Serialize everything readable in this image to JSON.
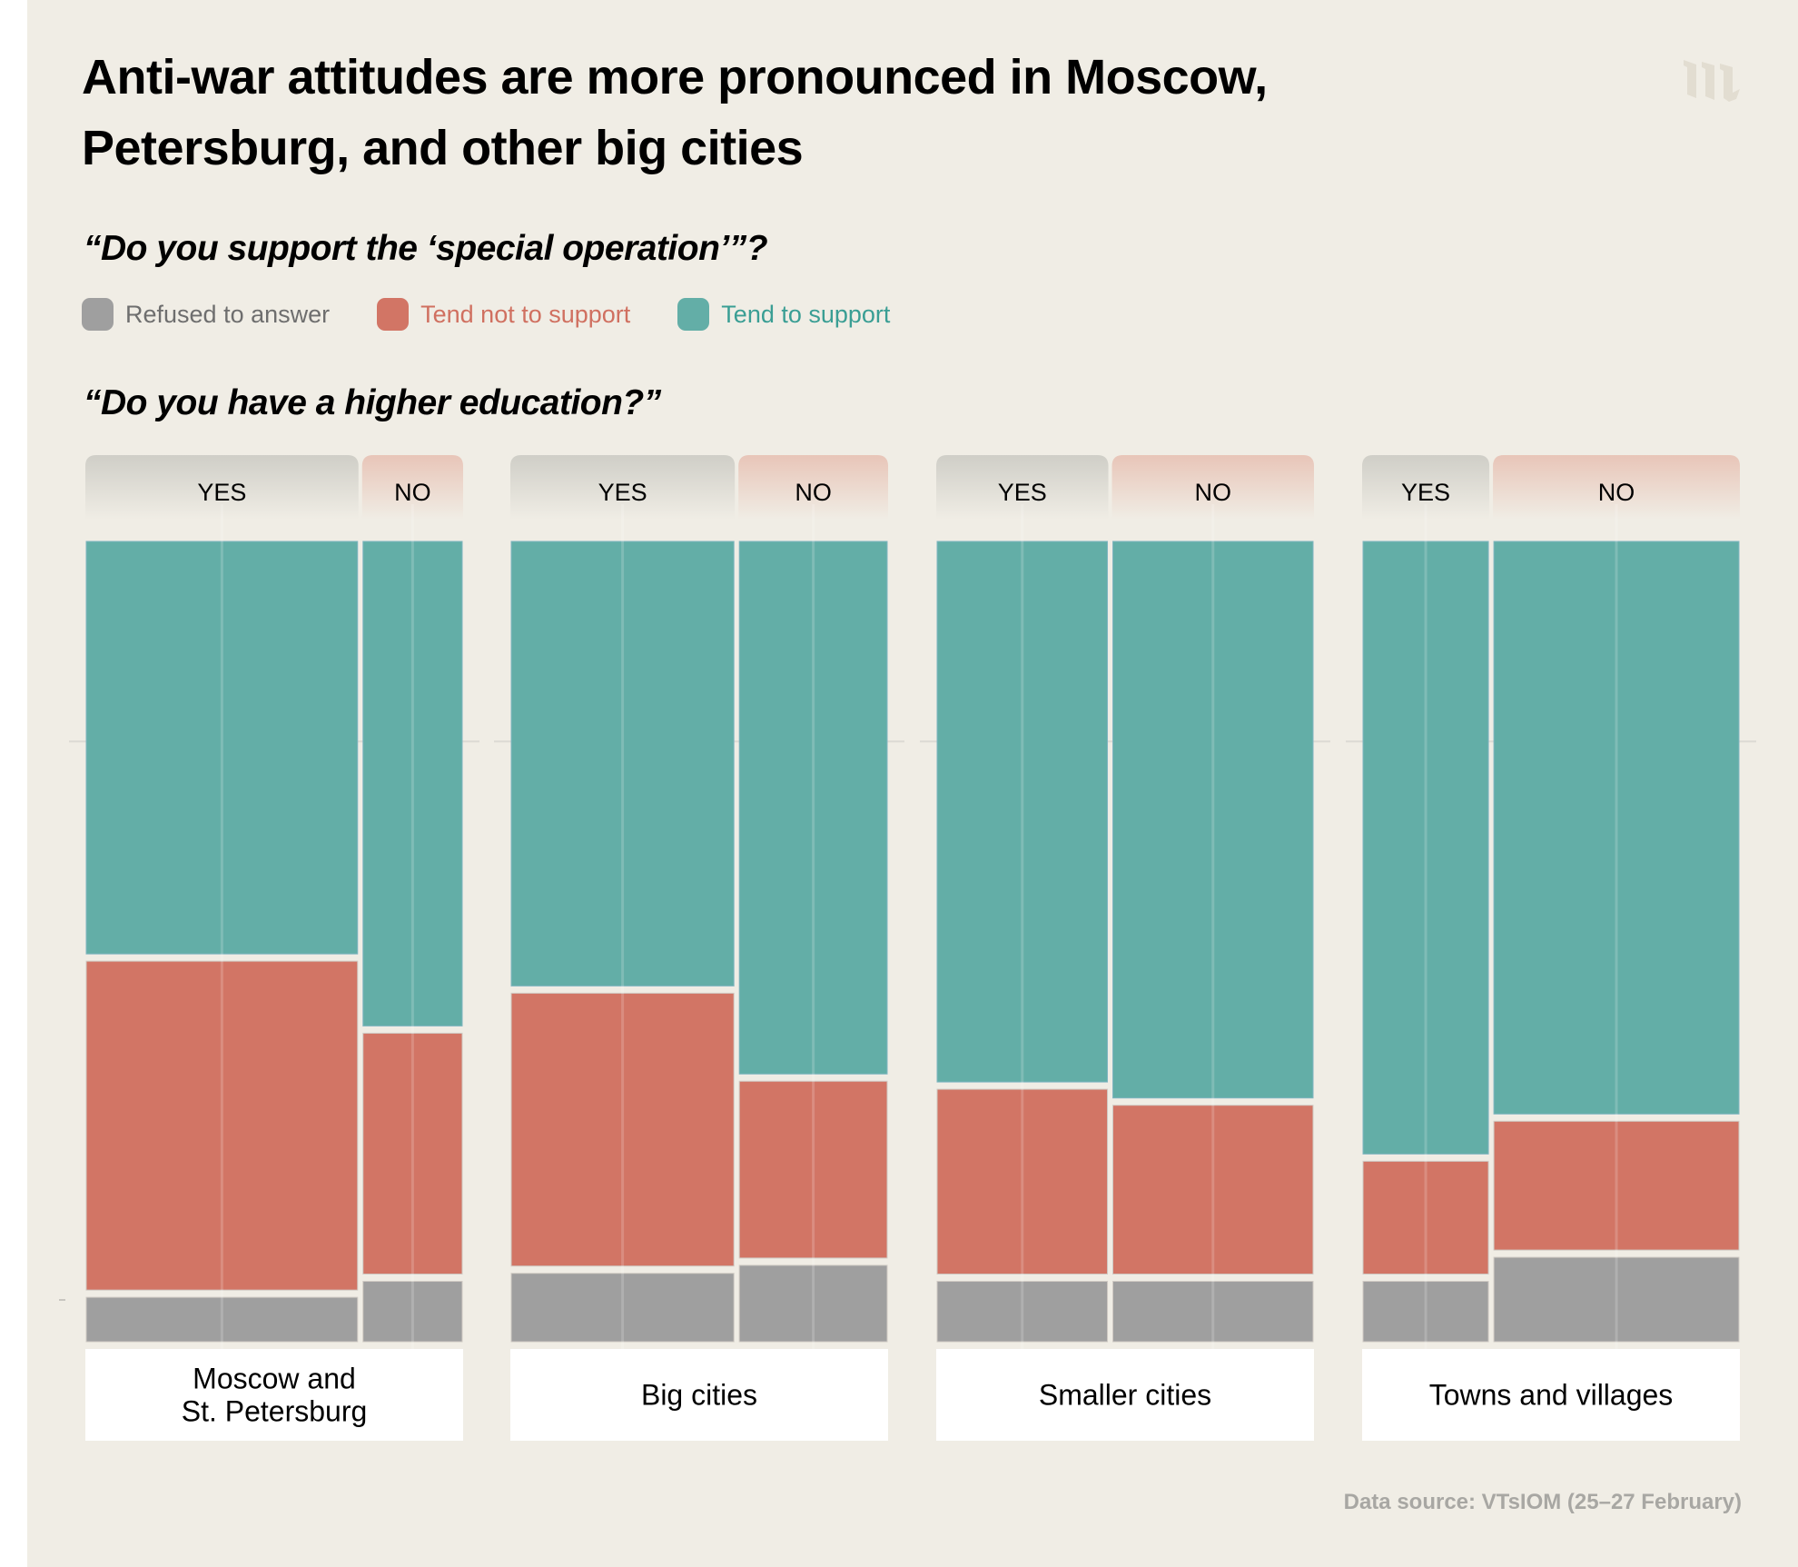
{
  "title": "Anti-war attitudes are more pronounced in Moscow, Petersburg, and other big cities",
  "logo": "meduza-logo",
  "question_support": "“Do you support the ‘special operation’”?",
  "question_education": "“Do you have a higher education?”",
  "legend": [
    {
      "label": "Refused to answer",
      "color": "#9f9f9f",
      "text_color": "#6e6e6e"
    },
    {
      "label": "Tend not to support",
      "color": "#d27565",
      "text_color": "#d07060"
    },
    {
      "label": "Tend to support",
      "color": "#63aea7",
      "text_color": "#3a9e94"
    }
  ],
  "footer": "Data source: VTsIOM (25–27 February)",
  "chart_data": {
    "type": "mosaic (stacked 100% bar, variable width)",
    "title": "Anti-war attitudes are more pronounced in Moscow, Petersburg, and other big cities",
    "series_order_bottom_to_top": [
      "Refused to answer",
      "Tend not to support",
      "Tend to support"
    ],
    "column_header_labels": {
      "yes": "YES",
      "no": "NO"
    },
    "ylim": [
      0,
      100
    ],
    "unit": "%",
    "groups": [
      {
        "label": "Moscow and St. Petersburg",
        "label_lines": [
          "Moscow and",
          "St. Petersburg"
        ],
        "columns": [
          {
            "education": "YES",
            "share_of_group": 73,
            "refused": 6,
            "not_support": 42,
            "support": 52
          },
          {
            "education": "NO",
            "share_of_group": 27,
            "refused": 8,
            "not_support": 31,
            "support": 61
          }
        ]
      },
      {
        "label": "Big cities",
        "label_lines": [
          "Big cities"
        ],
        "columns": [
          {
            "education": "YES",
            "share_of_group": 60,
            "refused": 9,
            "not_support": 35,
            "support": 56
          },
          {
            "education": "NO",
            "share_of_group": 40,
            "refused": 10,
            "not_support": 23,
            "support": 67
          }
        ]
      },
      {
        "label": "Smaller cities",
        "label_lines": [
          "Smaller cities"
        ],
        "columns": [
          {
            "education": "YES",
            "share_of_group": 46,
            "refused": 8,
            "not_support": 24,
            "support": 68
          },
          {
            "education": "NO",
            "share_of_group": 54,
            "refused": 8,
            "not_support": 22,
            "support": 70
          }
        ]
      },
      {
        "label": "Towns and villages",
        "label_lines": [
          "Towns and villages"
        ],
        "columns": [
          {
            "education": "YES",
            "share_of_group": 34,
            "refused": 8,
            "not_support": 15,
            "support": 77
          },
          {
            "education": "NO",
            "share_of_group": 66,
            "refused": 11,
            "not_support": 17,
            "support": 72
          }
        ]
      }
    ],
    "gridline_at": 75,
    "legend_position": "top-left",
    "source": "Data source: VTsIOM (25–27 February)"
  }
}
